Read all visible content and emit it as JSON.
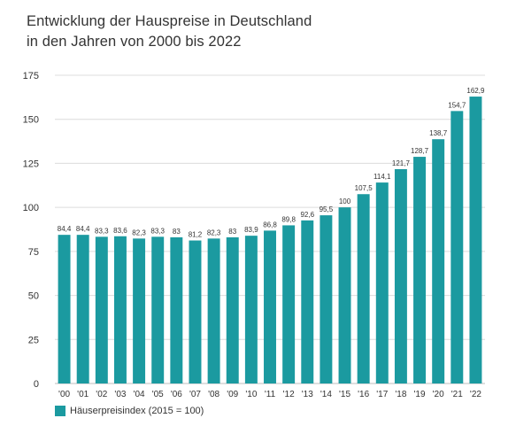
{
  "title_line1": "Entwicklung der Hauspreise in Deutschland",
  "title_line2": "in den Jahren von 2000 bis 2022",
  "colors": {
    "bar": "#1b9aa0",
    "grid": "#dcdcdc",
    "axis_text": "#333333",
    "label_text": "#333333"
  },
  "chart_data": {
    "type": "bar",
    "title": "Entwicklung der Hauspreise in Deutschland in den Jahren von 2000 bis 2022",
    "categories": [
      "'00",
      "'01",
      "'02",
      "'03",
      "'04",
      "'05",
      "'06",
      "'07",
      "'08",
      "'09",
      "'10",
      "'11",
      "'12",
      "'13",
      "'14",
      "'15",
      "'16",
      "'17",
      "'18",
      "'19",
      "'20",
      "'21",
      "'22"
    ],
    "value_labels": [
      "84,4",
      "84,4",
      "83,3",
      "83,6",
      "82,3",
      "83,3",
      "83",
      "81,2",
      "82,3",
      "83",
      "83,9",
      "86,8",
      "89,8",
      "92,6",
      "95,5",
      "100",
      "107,5",
      "114,1",
      "121,7",
      "128,7",
      "138,7",
      "154,7",
      "162,9"
    ],
    "series": [
      {
        "name": "Häuserpreisindex (2015 = 100)",
        "values": [
          84.4,
          84.4,
          83.3,
          83.6,
          82.3,
          83.3,
          83,
          81.2,
          82.3,
          83,
          83.9,
          86.8,
          89.8,
          92.6,
          95.5,
          100,
          107.5,
          114.1,
          121.7,
          128.7,
          138.7,
          154.7,
          162.9
        ]
      }
    ],
    "ylim": [
      0,
      175
    ],
    "yticks": [
      0,
      25,
      50,
      75,
      100,
      125,
      150,
      175
    ],
    "grid": true,
    "legend": "bottom-left",
    "xlabel": "",
    "ylabel": ""
  }
}
